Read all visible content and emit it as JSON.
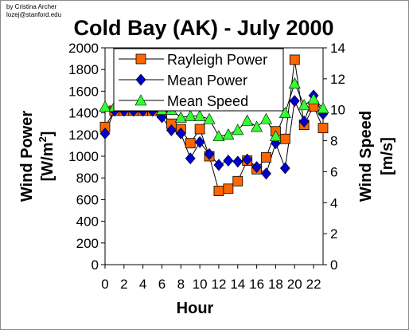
{
  "credit": {
    "line1": "by Cristina Archer",
    "line2": "lozej@stanford.edu"
  },
  "colors": {
    "rayleigh_fill": "#FF6600",
    "mean_power_fill": "#0000CC",
    "mean_speed_fill": "#33FF33",
    "line": "#000000"
  },
  "chart_data": {
    "type": "line",
    "title": "Cold Bay (AK) - July 2000",
    "xlabel": "Hour",
    "ylabel_left": "Wind Power [W/m2]",
    "ylabel_left_line1": "Wind Power",
    "ylabel_left_line2_main": "[W/m",
    "ylabel_left_line2_sup": "2",
    "ylabel_left_line2_end": "]",
    "ylabel_right_line1": "Wind Speed",
    "ylabel_right_line2": "[m/s]",
    "x": [
      0,
      1,
      2,
      3,
      4,
      5,
      6,
      7,
      8,
      9,
      10,
      11,
      12,
      13,
      14,
      15,
      16,
      17,
      18,
      19,
      20,
      21,
      22,
      23
    ],
    "xlim": [
      0,
      23
    ],
    "xticks": [
      0,
      2,
      4,
      6,
      8,
      10,
      12,
      14,
      16,
      18,
      20,
      22
    ],
    "ylim_left": [
      0,
      2000
    ],
    "yticks_left": [
      0,
      200,
      400,
      600,
      800,
      1000,
      1200,
      1400,
      1600,
      1800,
      2000
    ],
    "ylim_right": [
      0,
      14
    ],
    "yticks_right": [
      0,
      2,
      4,
      6,
      8,
      10,
      12,
      14
    ],
    "legend_position": "top-center",
    "grid": false,
    "series": [
      {
        "name": "Rayleigh Power",
        "axis": "left",
        "marker": "square",
        "values": [
          1270,
          1420,
          1420,
          1420,
          1420,
          1420,
          1400,
          1300,
          1250,
          1120,
          1250,
          1000,
          680,
          700,
          770,
          960,
          880,
          990,
          1230,
          1160,
          1890,
          1290,
          1460,
          1260
        ]
      },
      {
        "name": "Mean Power",
        "axis": "left",
        "marker": "diamond",
        "values": [
          1210,
          1420,
          1420,
          1420,
          1420,
          1420,
          1360,
          1240,
          1210,
          980,
          1130,
          1020,
          920,
          960,
          950,
          970,
          900,
          840,
          1120,
          890,
          1510,
          1320,
          1560,
          1390
        ]
      },
      {
        "name": "Mean Speed",
        "axis": "right",
        "marker": "triangle",
        "values": [
          10.2,
          10.2,
          10.2,
          10.2,
          10.2,
          10.2,
          10.0,
          10.0,
          9.5,
          9.6,
          9.6,
          9.4,
          8.3,
          8.4,
          8.7,
          9.3,
          8.9,
          9.4,
          8.3,
          9.8,
          11.7,
          10.3,
          10.7,
          10.1
        ]
      }
    ]
  }
}
